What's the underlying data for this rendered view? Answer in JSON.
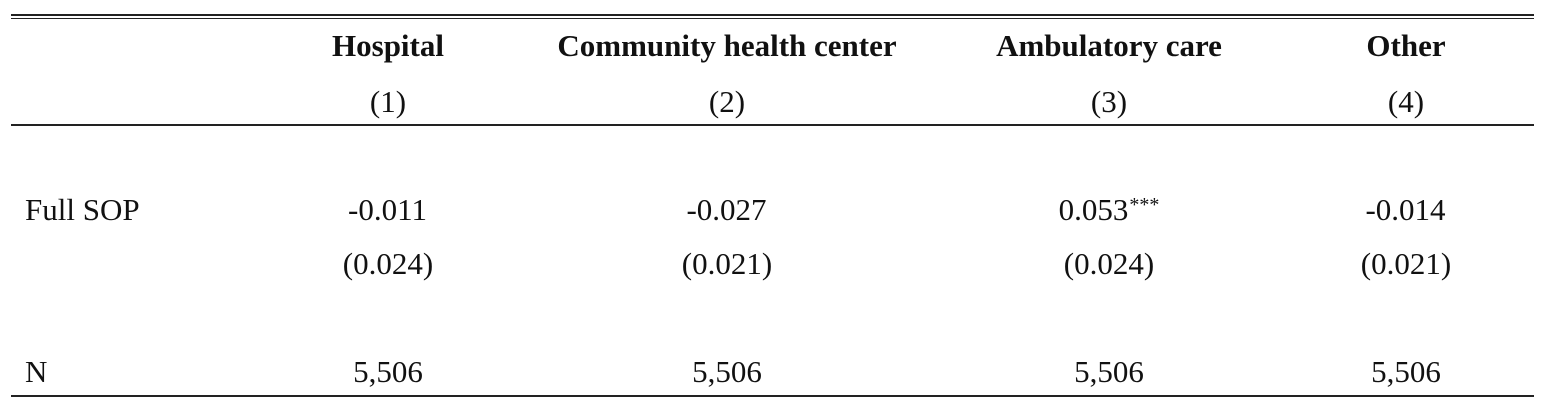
{
  "table": {
    "columns": [
      {
        "header": "Hospital",
        "number": "(1)"
      },
      {
        "header": "Community health center",
        "number": "(2)"
      },
      {
        "header": "Ambulatory care",
        "number": "(3)"
      },
      {
        "header": "Other",
        "number": "(4)"
      }
    ],
    "rows": {
      "full_sop": {
        "label": "Full SOP",
        "coefficients": [
          "-0.011",
          "-0.027",
          "0.053",
          "-0.014"
        ],
        "stars": [
          "",
          "",
          "***",
          ""
        ],
        "std_errors": [
          "(0.024)",
          "(0.021)",
          "(0.024)",
          "(0.021)"
        ]
      },
      "n": {
        "label": "N",
        "values": [
          "5,506",
          "5,506",
          "5,506",
          "5,506"
        ]
      }
    }
  }
}
